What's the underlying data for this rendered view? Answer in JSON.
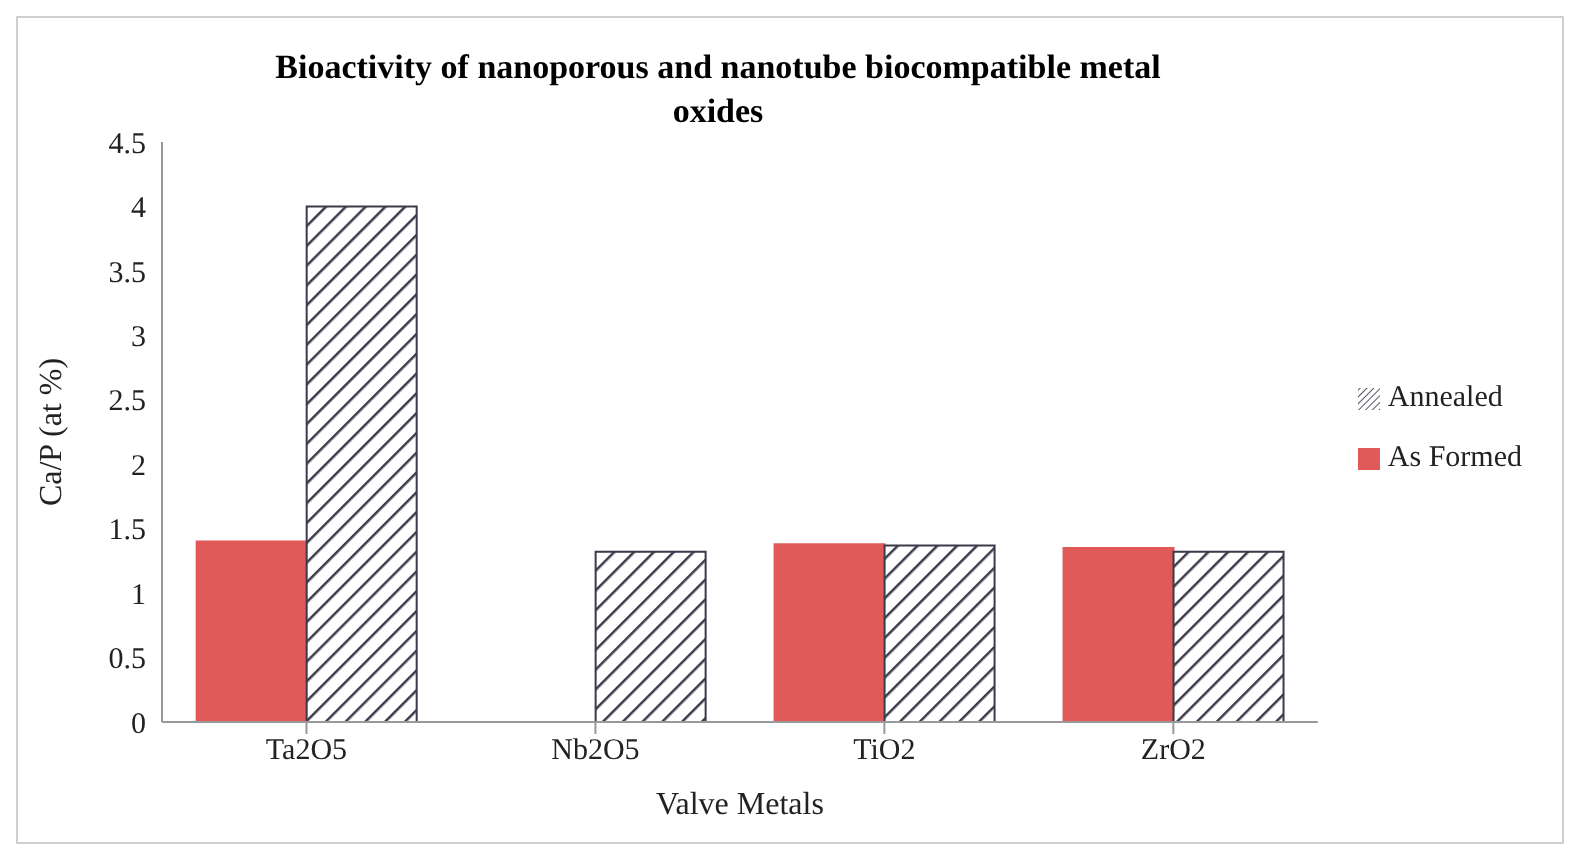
{
  "chart_data": {
    "type": "bar",
    "title": "Bioactivity of nanoporous and nanotube biocompatible metal oxides",
    "xlabel": "Valve Metals",
    "ylabel": "Ca/P (at %)",
    "categories": [
      "Ta2O5",
      "Nb2O5",
      "TiO2",
      "ZrO2"
    ],
    "series": [
      {
        "name": "As Formed",
        "color": "#e05a5a",
        "values": [
          1.4,
          null,
          1.38,
          1.35
        ]
      },
      {
        "name": "Annealed",
        "color": "#3a3a4a",
        "values": [
          4.0,
          1.32,
          1.37,
          1.32
        ]
      }
    ],
    "ylim": [
      0,
      4.5
    ],
    "yticks": [
      0,
      0.5,
      1,
      1.5,
      2,
      2.5,
      3,
      3.5,
      4,
      4.5
    ],
    "grid": false,
    "legend": "right"
  }
}
